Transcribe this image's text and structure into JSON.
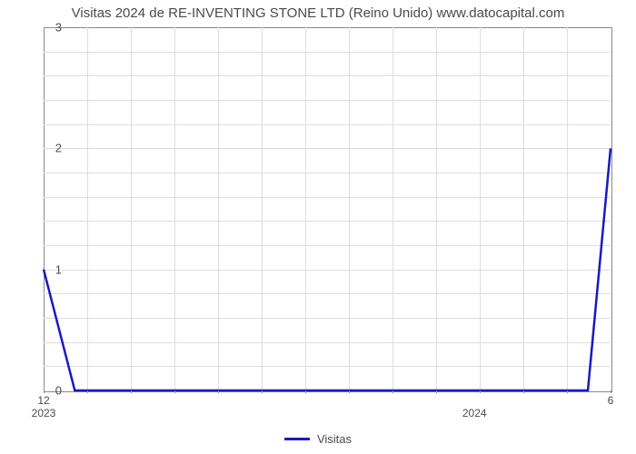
{
  "chart": {
    "type": "line",
    "title": "Visitas 2024 de RE-INVENTING STONE LTD (Reino Unido) www.datocapital.com",
    "title_fontsize": 15,
    "title_color": "#4a4a4a",
    "background_color": "#ffffff",
    "plot_border_color": "#888888",
    "grid_color": "#dddddd",
    "axis_label_color": "#4a4a4a",
    "axis_label_fontsize": 13,
    "ylim": [
      0,
      3
    ],
    "ytick_step": 1,
    "yticks": [
      0,
      1,
      2,
      3
    ],
    "y_minor_gridlines": 4,
    "x_major_ticks": [
      {
        "pos": 0.0,
        "label": "12",
        "sub_label": "2023"
      },
      {
        "pos": 1.0,
        "label": "6",
        "sub_label": ""
      }
    ],
    "x_year_label_2024_pos": 0.76,
    "x_minor_tick_count": 13,
    "x_vertical_gridline_count": 13,
    "series": {
      "name": "Visitas",
      "color": "#1818c8",
      "line_width": 2.5,
      "points": [
        {
          "x": 0.0,
          "y": 1.0
        },
        {
          "x": 0.055,
          "y": 0.0
        },
        {
          "x": 0.96,
          "y": 0.0
        },
        {
          "x": 1.0,
          "y": 2.0
        }
      ]
    },
    "legend": {
      "label": "Visitas",
      "color": "#1818c8",
      "fontsize": 13
    }
  }
}
